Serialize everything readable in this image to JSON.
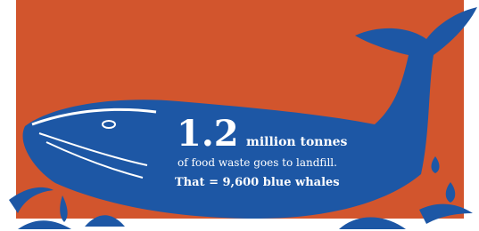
{
  "infographic": {
    "headline_number": "1.2",
    "headline_unit": "million tonnes",
    "line_1": "of food waste goes to landfill.",
    "line_2": "That = 9,600 blue whales"
  }
}
